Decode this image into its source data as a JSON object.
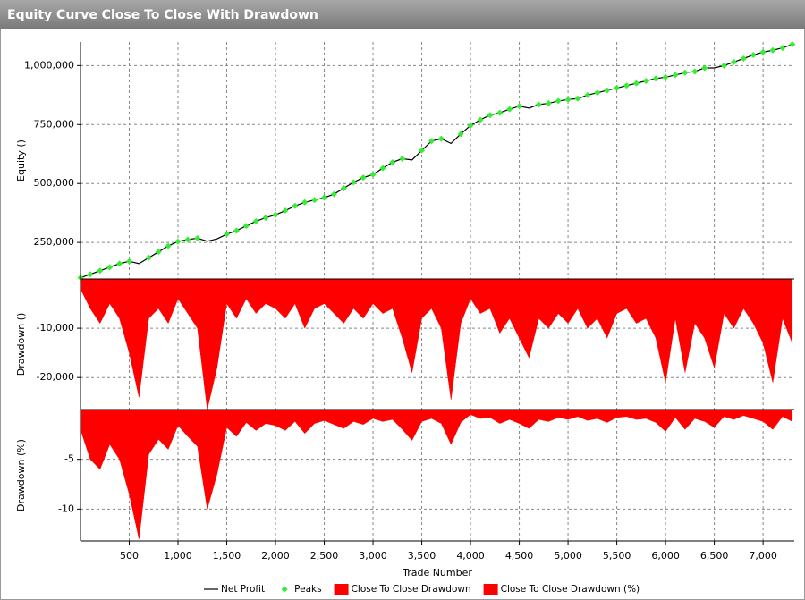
{
  "title": "Equity Curve Close To Close With Drawdown",
  "chart_data": [
    {
      "type": "line",
      "ylabel": "Equity ()",
      "x": [
        0,
        100,
        200,
        300,
        400,
        500,
        600,
        700,
        800,
        900,
        1000,
        1100,
        1200,
        1300,
        1400,
        1500,
        1600,
        1700,
        1800,
        1900,
        2000,
        2100,
        2200,
        2300,
        2400,
        2500,
        2600,
        2700,
        2800,
        2900,
        3000,
        3100,
        3200,
        3300,
        3400,
        3500,
        3600,
        3700,
        3800,
        3900,
        4000,
        4100,
        4200,
        4300,
        4400,
        4500,
        4600,
        4700,
        4800,
        4900,
        5000,
        5100,
        5200,
        5300,
        5400,
        5500,
        5600,
        5700,
        5800,
        5900,
        6000,
        6100,
        6200,
        6300,
        6400,
        6500,
        6600,
        6700,
        6800,
        6900,
        7000,
        7100,
        7200,
        7300
      ],
      "ylim": [
        95000,
        1100000
      ],
      "yticks": [
        {
          "value": 250000,
          "label": "250,000"
        },
        {
          "value": 500000,
          "label": "500,000"
        },
        {
          "value": 750000,
          "label": "750,000"
        },
        {
          "value": 1000000,
          "label": "1,000,000"
        }
      ],
      "grid": true,
      "series": [
        {
          "name": "Net Profit",
          "color": "#000000",
          "mode": "line",
          "values": [
            100000,
            115000,
            130000,
            145000,
            160000,
            170000,
            160000,
            185000,
            210000,
            235000,
            254000,
            262000,
            268000,
            255000,
            265000,
            285000,
            300000,
            320000,
            340000,
            355000,
            367000,
            385000,
            405000,
            420000,
            430000,
            440000,
            455000,
            480000,
            505000,
            525000,
            538000,
            565000,
            590000,
            605000,
            600000,
            640000,
            680000,
            690000,
            670000,
            710000,
            746000,
            770000,
            790000,
            800000,
            815000,
            828000,
            820000,
            835000,
            840000,
            850000,
            856000,
            860000,
            875000,
            885000,
            895000,
            905000,
            915000,
            925000,
            935000,
            945000,
            951000,
            960000,
            970000,
            975000,
            990000,
            990000,
            1000000,
            1015000,
            1030000,
            1045000,
            1057000,
            1065000,
            1075000,
            1090000
          ]
        },
        {
          "name": "Peaks",
          "color": "#33ee33",
          "mode": "markers",
          "values": [
            100000,
            115000,
            130000,
            145000,
            160000,
            170000,
            null,
            185000,
            210000,
            235000,
            254000,
            262000,
            268000,
            null,
            null,
            285000,
            300000,
            320000,
            340000,
            355000,
            367000,
            385000,
            405000,
            420000,
            430000,
            440000,
            455000,
            480000,
            505000,
            525000,
            538000,
            565000,
            590000,
            605000,
            null,
            640000,
            680000,
            690000,
            null,
            710000,
            746000,
            770000,
            790000,
            800000,
            815000,
            828000,
            null,
            835000,
            840000,
            850000,
            856000,
            860000,
            875000,
            885000,
            895000,
            905000,
            915000,
            925000,
            935000,
            945000,
            951000,
            960000,
            970000,
            975000,
            990000,
            null,
            1000000,
            1015000,
            1030000,
            1045000,
            1057000,
            1065000,
            1075000,
            1090000
          ]
        }
      ]
    },
    {
      "type": "area",
      "ylabel": "Drawdown ()",
      "x": [
        0,
        100,
        200,
        300,
        400,
        500,
        600,
        700,
        800,
        900,
        1000,
        1100,
        1200,
        1300,
        1400,
        1500,
        1600,
        1700,
        1800,
        1900,
        2000,
        2100,
        2200,
        2300,
        2400,
        2500,
        2600,
        2700,
        2800,
        2900,
        3000,
        3100,
        3200,
        3300,
        3400,
        3500,
        3600,
        3700,
        3800,
        3900,
        4000,
        4100,
        4200,
        4300,
        4400,
        4500,
        4600,
        4700,
        4800,
        4900,
        5000,
        5100,
        5200,
        5300,
        5400,
        5500,
        5600,
        5700,
        5800,
        5900,
        6000,
        6100,
        6200,
        6300,
        6400,
        6500,
        6600,
        6700,
        6800,
        6900,
        7000,
        7100,
        7200,
        7300
      ],
      "ylim": [
        -26500,
        0
      ],
      "yticks": [
        {
          "value": -10000,
          "label": "-10,000"
        },
        {
          "value": -20000,
          "label": "-20,000"
        }
      ],
      "grid": true,
      "series": [
        {
          "name": "Close To Close Drawdown",
          "color": "#ff0000",
          "values": [
            -2000,
            -6000,
            -9000,
            -5000,
            -8000,
            -15000,
            -24000,
            -8000,
            -6000,
            -9000,
            -4000,
            -7000,
            -10000,
            -26500,
            -18000,
            -5000,
            -8000,
            -4000,
            -7000,
            -5000,
            -6000,
            -8000,
            -5000,
            -10000,
            -6000,
            -5000,
            -7000,
            -9000,
            -6000,
            -8000,
            -5000,
            -7000,
            -6000,
            -12000,
            -19000,
            -8000,
            -6000,
            -10000,
            -24500,
            -9000,
            -4000,
            -7000,
            -6000,
            -11000,
            -8000,
            -12000,
            -16000,
            -8000,
            -10000,
            -7000,
            -9000,
            -6000,
            -10000,
            -8000,
            -12000,
            -7000,
            -6000,
            -9000,
            -8000,
            -12000,
            -21000,
            -8000,
            -19000,
            -9000,
            -12000,
            -18000,
            -7000,
            -10000,
            -6000,
            -9000,
            -13000,
            -21000,
            -8000,
            -13000
          ]
        }
      ]
    },
    {
      "type": "area",
      "ylabel": "Drawdown (%)",
      "xlabel": "Trade Number",
      "x": [
        0,
        100,
        200,
        300,
        400,
        500,
        600,
        700,
        800,
        900,
        1000,
        1100,
        1200,
        1300,
        1400,
        1500,
        1600,
        1700,
        1800,
        1900,
        2000,
        2100,
        2200,
        2300,
        2400,
        2500,
        2600,
        2700,
        2800,
        2900,
        3000,
        3100,
        3200,
        3300,
        3400,
        3500,
        3600,
        3700,
        3800,
        3900,
        4000,
        4100,
        4200,
        4300,
        4400,
        4500,
        4600,
        4700,
        4800,
        4900,
        5000,
        5100,
        5200,
        5300,
        5400,
        5500,
        5600,
        5700,
        5800,
        5900,
        6000,
        6100,
        6200,
        6300,
        6400,
        6500,
        6600,
        6700,
        6800,
        6900,
        7000,
        7100,
        7200,
        7300
      ],
      "xlim": [
        0,
        7320
      ],
      "xticks": [
        500,
        {
          "value": 1000,
          "label": "1,000"
        },
        {
          "value": 1500,
          "label": "1,500"
        },
        {
          "value": 2000,
          "label": "2,000"
        },
        {
          "value": 2500,
          "label": "2,500"
        },
        {
          "value": 3000,
          "label": "3,000"
        },
        {
          "value": 3500,
          "label": "3,500"
        },
        {
          "value": 4000,
          "label": "4,000"
        },
        {
          "value": 4500,
          "label": "4,500"
        },
        {
          "value": 5000,
          "label": "5,000"
        },
        {
          "value": 5500,
          "label": "5,500"
        },
        {
          "value": 6000,
          "label": "6,000"
        },
        {
          "value": 6500,
          "label": "6,500"
        },
        {
          "value": 7000,
          "label": "7,000"
        }
      ],
      "ylim": [
        -13.2,
        0
      ],
      "yticks": [
        -5,
        -10
      ],
      "grid": true,
      "series": [
        {
          "name": "Close To Close Drawdown (%)",
          "color": "#ff0000",
          "values": [
            -2,
            -5,
            -6,
            -3.5,
            -5,
            -8.5,
            -13,
            -4.5,
            -3,
            -4,
            -1.6,
            -2.7,
            -3.7,
            -10,
            -6.5,
            -1.8,
            -2.7,
            -1.3,
            -2.1,
            -1.4,
            -1.6,
            -2.1,
            -1.2,
            -2.4,
            -1.4,
            -1.1,
            -1.5,
            -1.9,
            -1.2,
            -1.5,
            -0.9,
            -1.2,
            -1,
            -2,
            -3.1,
            -1.2,
            -0.9,
            -1.4,
            -3.5,
            -1.3,
            -0.5,
            -0.9,
            -0.8,
            -1.4,
            -1,
            -1.4,
            -1.9,
            -1,
            -1.2,
            -0.8,
            -1,
            -0.7,
            -1.1,
            -0.9,
            -1.3,
            -0.8,
            -0.7,
            -1,
            -0.9,
            -1.3,
            -2.2,
            -0.8,
            -2,
            -0.9,
            -1.2,
            -1.8,
            -0.7,
            -1,
            -0.6,
            -0.9,
            -1.2,
            -2,
            -0.7,
            -1.2
          ]
        }
      ]
    }
  ]
}
